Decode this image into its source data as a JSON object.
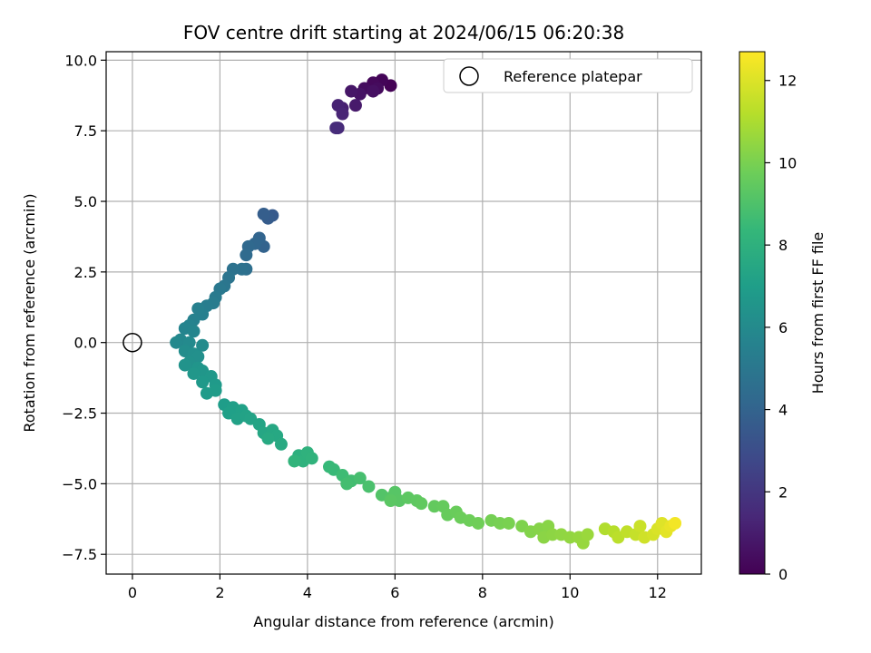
{
  "chart_data": {
    "type": "scatter",
    "title": "FOV centre drift starting at 2024/06/15 06:20:38",
    "xlabel": "Angular distance from reference (arcmin)",
    "ylabel": "Rotation from reference (arcmin)",
    "xlim": [
      -0.6,
      13.0
    ],
    "ylim": [
      -8.2,
      10.3
    ],
    "xticks": [
      0,
      2,
      4,
      6,
      8,
      10,
      12
    ],
    "yticks": [
      -7.5,
      -5.0,
      -2.5,
      0.0,
      2.5,
      5.0,
      7.5,
      10.0
    ],
    "xtick_labels": [
      "0",
      "2",
      "4",
      "6",
      "8",
      "10",
      "12"
    ],
    "ytick_labels": [
      "−7.5",
      "−5.0",
      "−2.5",
      "0.0",
      "2.5",
      "5.0",
      "7.5",
      "10.0"
    ],
    "grid": true,
    "legend": {
      "position": "top-right",
      "entries": [
        "Reference platepar"
      ]
    },
    "reference_point": {
      "x": 0.0,
      "y": 0.0,
      "marker": "open-circle"
    },
    "colorbar": {
      "label": "Hours from first FF file",
      "min": 0,
      "max": 12.7,
      "ticks": [
        0,
        2,
        4,
        6,
        8,
        10,
        12
      ],
      "tick_labels": [
        "0",
        "2",
        "4",
        "6",
        "8",
        "10",
        "12"
      ],
      "colormap": "viridis"
    },
    "colormap_stops": [
      "#440154",
      "#482878",
      "#3e4989",
      "#31688e",
      "#26828e",
      "#1f9e89",
      "#35b779",
      "#6ece58",
      "#b5de2b",
      "#fde725"
    ],
    "series": [
      {
        "points": [
          {
            "x": 5.9,
            "y": 9.1,
            "c": 0.05
          },
          {
            "x": 5.7,
            "y": 9.3,
            "c": 0.15
          },
          {
            "x": 5.5,
            "y": 9.2,
            "c": 0.25
          },
          {
            "x": 5.6,
            "y": 9.0,
            "c": 0.35
          },
          {
            "x": 5.3,
            "y": 9.0,
            "c": 0.45
          },
          {
            "x": 5.5,
            "y": 8.9,
            "c": 0.55
          },
          {
            "x": 5.2,
            "y": 8.8,
            "c": 0.65
          },
          {
            "x": 5.0,
            "y": 8.9,
            "c": 0.75
          },
          {
            "x": 5.1,
            "y": 8.4,
            "c": 0.9
          },
          {
            "x": 4.8,
            "y": 8.3,
            "c": 1.1
          },
          {
            "x": 4.7,
            "y": 8.4,
            "c": 1.2
          },
          {
            "x": 4.8,
            "y": 8.1,
            "c": 1.3
          },
          {
            "x": 4.7,
            "y": 7.6,
            "c": 1.5
          },
          {
            "x": 4.65,
            "y": 7.6,
            "c": 1.6
          },
          {
            "x": 3.2,
            "y": 4.5,
            "c": 3.6
          },
          {
            "x": 3.1,
            "y": 4.4,
            "c": 3.7
          },
          {
            "x": 3.0,
            "y": 4.55,
            "c": 3.8
          },
          {
            "x": 3.0,
            "y": 3.4,
            "c": 4.0
          },
          {
            "x": 2.9,
            "y": 3.7,
            "c": 4.1
          },
          {
            "x": 2.8,
            "y": 3.5,
            "c": 4.2
          },
          {
            "x": 2.65,
            "y": 3.4,
            "c": 4.3
          },
          {
            "x": 2.6,
            "y": 3.1,
            "c": 4.4
          },
          {
            "x": 2.6,
            "y": 2.6,
            "c": 4.6
          },
          {
            "x": 2.5,
            "y": 2.6,
            "c": 4.7
          },
          {
            "x": 2.3,
            "y": 2.6,
            "c": 4.8
          },
          {
            "x": 2.2,
            "y": 2.3,
            "c": 4.9
          },
          {
            "x": 2.1,
            "y": 2.0,
            "c": 5.0
          },
          {
            "x": 2.0,
            "y": 1.9,
            "c": 5.1
          },
          {
            "x": 1.9,
            "y": 1.6,
            "c": 5.2
          },
          {
            "x": 1.85,
            "y": 1.4,
            "c": 5.3
          },
          {
            "x": 1.7,
            "y": 1.3,
            "c": 5.4
          },
          {
            "x": 1.6,
            "y": 1.0,
            "c": 5.5
          },
          {
            "x": 1.5,
            "y": 1.2,
            "c": 5.55
          },
          {
            "x": 1.4,
            "y": 0.8,
            "c": 5.6
          },
          {
            "x": 1.3,
            "y": 0.6,
            "c": 5.7
          },
          {
            "x": 1.2,
            "y": 0.5,
            "c": 5.75
          },
          {
            "x": 1.4,
            "y": 0.4,
            "c": 5.8
          },
          {
            "x": 1.1,
            "y": 0.1,
            "c": 5.9
          },
          {
            "x": 1.0,
            "y": 0.0,
            "c": 6.0
          },
          {
            "x": 1.3,
            "y": 0.0,
            "c": 6.05
          },
          {
            "x": 1.6,
            "y": -0.1,
            "c": 6.1
          },
          {
            "x": 1.2,
            "y": -0.3,
            "c": 6.2
          },
          {
            "x": 1.4,
            "y": -0.4,
            "c": 6.3
          },
          {
            "x": 1.5,
            "y": -0.5,
            "c": 6.35
          },
          {
            "x": 1.3,
            "y": -0.7,
            "c": 6.4
          },
          {
            "x": 1.2,
            "y": -0.8,
            "c": 6.5
          },
          {
            "x": 1.5,
            "y": -0.9,
            "c": 6.6
          },
          {
            "x": 1.6,
            "y": -1.0,
            "c": 6.65
          },
          {
            "x": 1.4,
            "y": -1.1,
            "c": 6.7
          },
          {
            "x": 1.8,
            "y": -1.2,
            "c": 6.75
          },
          {
            "x": 1.6,
            "y": -1.4,
            "c": 6.8
          },
          {
            "x": 1.9,
            "y": -1.5,
            "c": 6.85
          },
          {
            "x": 1.7,
            "y": -1.8,
            "c": 6.9
          },
          {
            "x": 1.9,
            "y": -1.7,
            "c": 6.95
          },
          {
            "x": 2.1,
            "y": -2.2,
            "c": 7.0
          },
          {
            "x": 2.3,
            "y": -2.3,
            "c": 7.1
          },
          {
            "x": 2.2,
            "y": -2.5,
            "c": 7.15
          },
          {
            "x": 2.5,
            "y": -2.4,
            "c": 7.2
          },
          {
            "x": 2.4,
            "y": -2.7,
            "c": 7.25
          },
          {
            "x": 2.6,
            "y": -2.6,
            "c": 7.3
          },
          {
            "x": 2.7,
            "y": -2.7,
            "c": 7.35
          },
          {
            "x": 2.9,
            "y": -2.9,
            "c": 7.4
          },
          {
            "x": 3.0,
            "y": -3.2,
            "c": 7.5
          },
          {
            "x": 3.2,
            "y": -3.1,
            "c": 7.55
          },
          {
            "x": 3.3,
            "y": -3.3,
            "c": 7.6
          },
          {
            "x": 3.1,
            "y": -3.4,
            "c": 7.65
          },
          {
            "x": 3.4,
            "y": -3.6,
            "c": 7.7
          },
          {
            "x": 3.8,
            "y": -4.0,
            "c": 8.0
          },
          {
            "x": 3.9,
            "y": -4.2,
            "c": 8.1
          },
          {
            "x": 4.0,
            "y": -3.9,
            "c": 8.15
          },
          {
            "x": 4.1,
            "y": -4.1,
            "c": 8.2
          },
          {
            "x": 3.7,
            "y": -4.2,
            "c": 8.25
          },
          {
            "x": 4.5,
            "y": -4.4,
            "c": 8.5
          },
          {
            "x": 4.6,
            "y": -4.5,
            "c": 8.55
          },
          {
            "x": 4.8,
            "y": -4.7,
            "c": 8.7
          },
          {
            "x": 5.0,
            "y": -4.9,
            "c": 8.8
          },
          {
            "x": 4.9,
            "y": -5.0,
            "c": 8.85
          },
          {
            "x": 5.2,
            "y": -4.8,
            "c": 8.9
          },
          {
            "x": 5.4,
            "y": -5.1,
            "c": 9.0
          },
          {
            "x": 5.7,
            "y": -5.4,
            "c": 9.2
          },
          {
            "x": 5.9,
            "y": -5.5,
            "c": 9.25
          },
          {
            "x": 6.0,
            "y": -5.3,
            "c": 9.3
          },
          {
            "x": 6.1,
            "y": -5.6,
            "c": 9.35
          },
          {
            "x": 5.9,
            "y": -5.6,
            "c": 9.4
          },
          {
            "x": 6.3,
            "y": -5.5,
            "c": 9.45
          },
          {
            "x": 6.5,
            "y": -5.6,
            "c": 9.5
          },
          {
            "x": 6.6,
            "y": -5.7,
            "c": 9.55
          },
          {
            "x": 6.9,
            "y": -5.8,
            "c": 9.6
          },
          {
            "x": 7.1,
            "y": -5.8,
            "c": 9.65
          },
          {
            "x": 7.2,
            "y": -6.1,
            "c": 9.7
          },
          {
            "x": 7.4,
            "y": -6.0,
            "c": 9.75
          },
          {
            "x": 7.5,
            "y": -6.2,
            "c": 9.8
          },
          {
            "x": 7.7,
            "y": -6.3,
            "c": 9.85
          },
          {
            "x": 7.9,
            "y": -6.4,
            "c": 9.9
          },
          {
            "x": 8.2,
            "y": -6.3,
            "c": 10.0
          },
          {
            "x": 8.4,
            "y": -6.4,
            "c": 10.05
          },
          {
            "x": 8.6,
            "y": -6.4,
            "c": 10.1
          },
          {
            "x": 8.9,
            "y": -6.5,
            "c": 10.2
          },
          {
            "x": 9.1,
            "y": -6.7,
            "c": 10.3
          },
          {
            "x": 9.3,
            "y": -6.6,
            "c": 10.35
          },
          {
            "x": 9.5,
            "y": -6.5,
            "c": 10.4
          },
          {
            "x": 9.4,
            "y": -6.9,
            "c": 10.45
          },
          {
            "x": 9.6,
            "y": -6.8,
            "c": 10.5
          },
          {
            "x": 9.8,
            "y": -6.8,
            "c": 10.55
          },
          {
            "x": 10.0,
            "y": -6.9,
            "c": 10.6
          },
          {
            "x": 10.2,
            "y": -6.9,
            "c": 10.65
          },
          {
            "x": 10.3,
            "y": -7.1,
            "c": 10.7
          },
          {
            "x": 10.4,
            "y": -6.8,
            "c": 10.75
          },
          {
            "x": 10.8,
            "y": -6.6,
            "c": 11.2
          },
          {
            "x": 11.0,
            "y": -6.7,
            "c": 11.3
          },
          {
            "x": 11.1,
            "y": -6.9,
            "c": 11.4
          },
          {
            "x": 11.3,
            "y": -6.7,
            "c": 11.5
          },
          {
            "x": 11.5,
            "y": -6.8,
            "c": 11.6
          },
          {
            "x": 11.6,
            "y": -6.5,
            "c": 11.7
          },
          {
            "x": 11.7,
            "y": -6.9,
            "c": 11.8
          },
          {
            "x": 11.9,
            "y": -6.8,
            "c": 11.9
          },
          {
            "x": 12.0,
            "y": -6.6,
            "c": 12.0
          },
          {
            "x": 12.1,
            "y": -6.4,
            "c": 12.1
          },
          {
            "x": 12.2,
            "y": -6.7,
            "c": 12.2
          },
          {
            "x": 12.3,
            "y": -6.5,
            "c": 12.3
          },
          {
            "x": 12.4,
            "y": -6.4,
            "c": 12.5
          }
        ]
      }
    ]
  }
}
